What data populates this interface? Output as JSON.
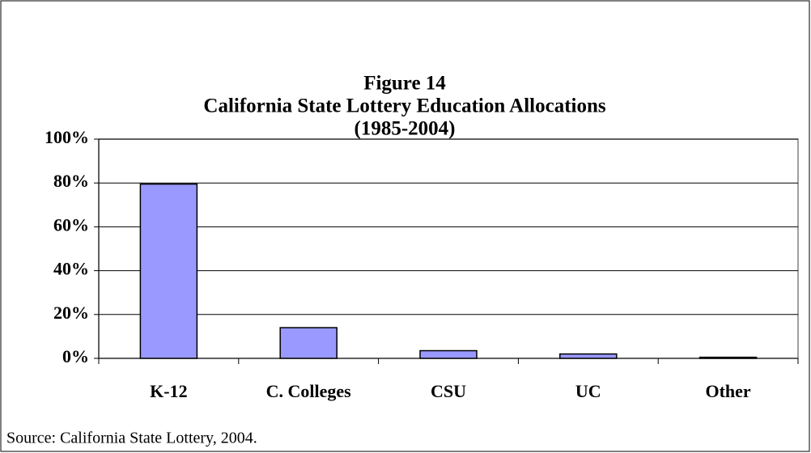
{
  "chart_data": {
    "type": "bar",
    "title": [
      "Figure 14",
      "California State Lottery Education Allocations",
      "(1985-2004)"
    ],
    "categories": [
      "K-12",
      "C. Colleges",
      "CSU",
      "UC",
      "Other"
    ],
    "values": [
      79.5,
      14,
      3.5,
      2,
      0.5
    ],
    "color": "#9999ff",
    "ylim": [
      0,
      100
    ],
    "yticks": [
      {
        "value": 0,
        "label": "0%"
      },
      {
        "value": 20,
        "label": "20%"
      },
      {
        "value": 40,
        "label": "40%"
      },
      {
        "value": 60,
        "label": "60%"
      },
      {
        "value": 80,
        "label": "80%"
      },
      {
        "value": 100,
        "label": "100%"
      }
    ],
    "grid": true,
    "source": "Source:  California State Lottery, 2004."
  }
}
